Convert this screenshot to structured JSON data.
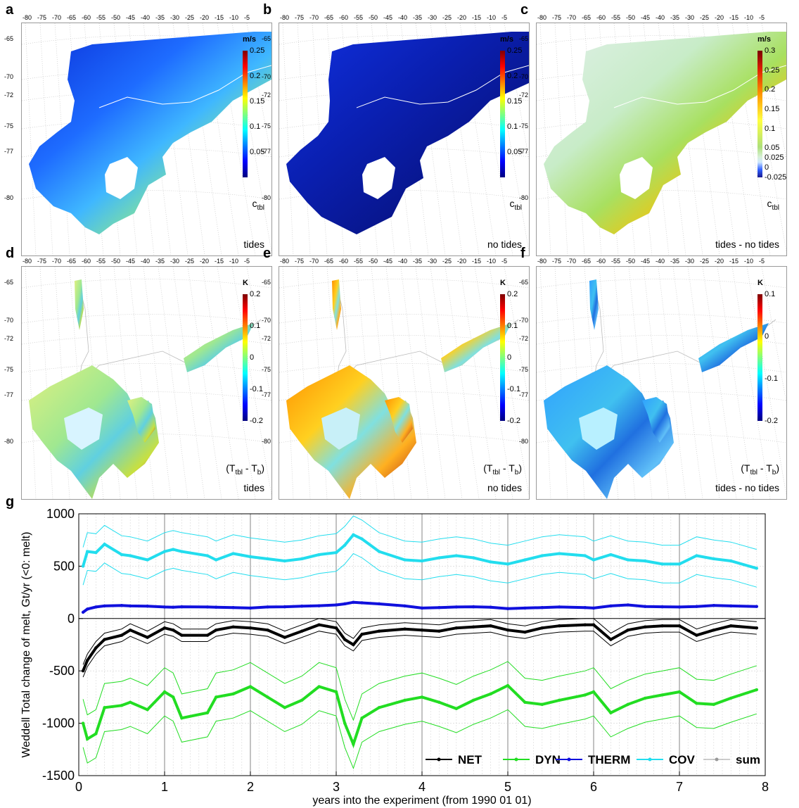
{
  "panels": [
    {
      "id": "a",
      "label": "a",
      "unit": "m/s",
      "var": "c",
      "sub": "tbl",
      "caption": "tides",
      "cbar": [
        "0.25",
        "0.2",
        "0.15",
        "0.1",
        "0.05"
      ],
      "scale": "jet"
    },
    {
      "id": "b",
      "label": "b",
      "unit": "m/s",
      "var": "c",
      "sub": "tbl",
      "caption": "no tides",
      "cbar": [
        "0.25",
        "0.2",
        "0.15",
        "0.1",
        "0.05"
      ],
      "scale": "jet"
    },
    {
      "id": "c",
      "label": "c",
      "unit": "m/s",
      "var": "c",
      "sub": "tbl",
      "caption": "tides - no tides",
      "cbar": [
        "0.3",
        "0.25",
        "0.2",
        "0.15",
        "0.1",
        "0.05",
        "0.025",
        "0",
        "-0.025"
      ],
      "scale": "div"
    },
    {
      "id": "d",
      "label": "d",
      "unit": "K",
      "var": "(T",
      "sub": "tbl",
      "var2": " - T",
      "sub2": "b",
      "var3": ")",
      "caption": "tides",
      "cbar": [
        "0.2",
        "0.1",
        "0",
        "-0.1",
        "-0.2"
      ],
      "scale": "jet"
    },
    {
      "id": "e",
      "label": "e",
      "unit": "K",
      "var": "(T",
      "sub": "tbl",
      "var2": " - T",
      "sub2": "b",
      "var3": ")",
      "caption": "no tides",
      "cbar": [
        "0.2",
        "0.1",
        "0",
        "-0.1",
        "-0.2"
      ],
      "scale": "jet"
    },
    {
      "id": "f",
      "label": "f",
      "unit": "K",
      "var": "(T",
      "sub": "tbl",
      "var2": " - T",
      "sub2": "b",
      "var3": ")",
      "caption": "tides - no tides",
      "cbar": [
        "0.1",
        "0",
        "-0.1",
        "-0.2"
      ],
      "scale": "jet"
    }
  ],
  "map_lon_ticks": [
    "-80",
    "-75",
    "-70",
    "-65",
    "-60",
    "-55",
    "-50",
    "-45",
    "-40",
    "-35",
    "-30",
    "-25",
    "-20",
    "-15",
    "-10",
    "-5"
  ],
  "map_lat_ticks": [
    "-65",
    "-70",
    "-72",
    "-75",
    "-77",
    "-80"
  ],
  "colors": {
    "net": "#000000",
    "dyn": "#22dd22",
    "therm": "#1010dd",
    "cov": "#22ddee",
    "sum": "#999999"
  },
  "chart_data": {
    "type": "line",
    "panel_label": "g",
    "xlabel": "years into the experiment (from 1990 01 01)",
    "ylabel": "Weddell Total change of melt, Gt/yr (<0: melt)",
    "xlim": [
      0,
      8
    ],
    "ylim": [
      -1500,
      1000
    ],
    "xticks": [
      "0",
      "1",
      "2",
      "3",
      "4",
      "5",
      "6",
      "7",
      "8"
    ],
    "yticks": [
      "1000",
      "500",
      "0",
      "-500",
      "-1000",
      "-1500"
    ],
    "grid": true,
    "legend_position": "bottom-right",
    "x": [
      0.05,
      0.1,
      0.2,
      0.3,
      0.5,
      0.6,
      0.8,
      1.0,
      1.1,
      1.2,
      1.5,
      1.6,
      1.8,
      2.0,
      2.2,
      2.4,
      2.6,
      2.8,
      3.0,
      3.1,
      3.2,
      3.3,
      3.5,
      3.8,
      4.0,
      4.2,
      4.4,
      4.6,
      4.8,
      5.0,
      5.2,
      5.4,
      5.6,
      5.9,
      6.0,
      6.2,
      6.4,
      6.6,
      6.8,
      7.0,
      7.2,
      7.4,
      7.6,
      7.9
    ],
    "series": [
      {
        "name": "NET",
        "values": [
          -500,
          -400,
          -280,
          -200,
          -160,
          -110,
          -180,
          -90,
          -110,
          -160,
          -160,
          -110,
          -80,
          -90,
          -110,
          -180,
          -120,
          -60,
          -90,
          -200,
          -250,
          -150,
          -120,
          -100,
          -110,
          -120,
          -90,
          -80,
          -70,
          -110,
          -130,
          -90,
          -70,
          -60,
          -60,
          -200,
          -110,
          -80,
          -70,
          -70,
          -160,
          -110,
          -70,
          -90
        ]
      },
      {
        "name": "DYN",
        "values": [
          -1000,
          -1150,
          -1100,
          -850,
          -830,
          -800,
          -870,
          -700,
          -750,
          -950,
          -900,
          -750,
          -720,
          -650,
          -750,
          -850,
          -780,
          -650,
          -700,
          -1000,
          -1200,
          -950,
          -850,
          -780,
          -750,
          -800,
          -860,
          -780,
          -720,
          -640,
          -800,
          -820,
          -780,
          -730,
          -700,
          -900,
          -820,
          -760,
          -730,
          -700,
          -810,
          -820,
          -760,
          -680
        ]
      },
      {
        "name": "THERM",
        "values": [
          60,
          90,
          110,
          120,
          125,
          120,
          118,
          110,
          108,
          112,
          110,
          108,
          105,
          100,
          110,
          112,
          118,
          122,
          130,
          140,
          155,
          150,
          140,
          120,
          100,
          105,
          110,
          112,
          108,
          95,
          100,
          105,
          110,
          105,
          100,
          120,
          130,
          115,
          112,
          110,
          115,
          125,
          120,
          115
        ]
      },
      {
        "name": "COV",
        "values": [
          500,
          640,
          630,
          710,
          610,
          600,
          560,
          640,
          660,
          640,
          600,
          560,
          620,
          590,
          570,
          550,
          570,
          610,
          630,
          700,
          800,
          760,
          640,
          560,
          550,
          580,
          600,
          580,
          540,
          520,
          560,
          600,
          620,
          600,
          560,
          610,
          560,
          550,
          520,
          520,
          600,
          570,
          550,
          480
        ]
      }
    ],
    "band_halfwidth": {
      "NET": 60,
      "DYN": 230,
      "THERM": 12,
      "COV": 180
    },
    "legend": [
      {
        "key": "net",
        "label": "NET"
      },
      {
        "key": "dyn",
        "label": "DYN"
      },
      {
        "key": "therm",
        "label": "THERM"
      },
      {
        "key": "cov",
        "label": "COV"
      },
      {
        "key": "sum",
        "label": "sum"
      }
    ]
  }
}
